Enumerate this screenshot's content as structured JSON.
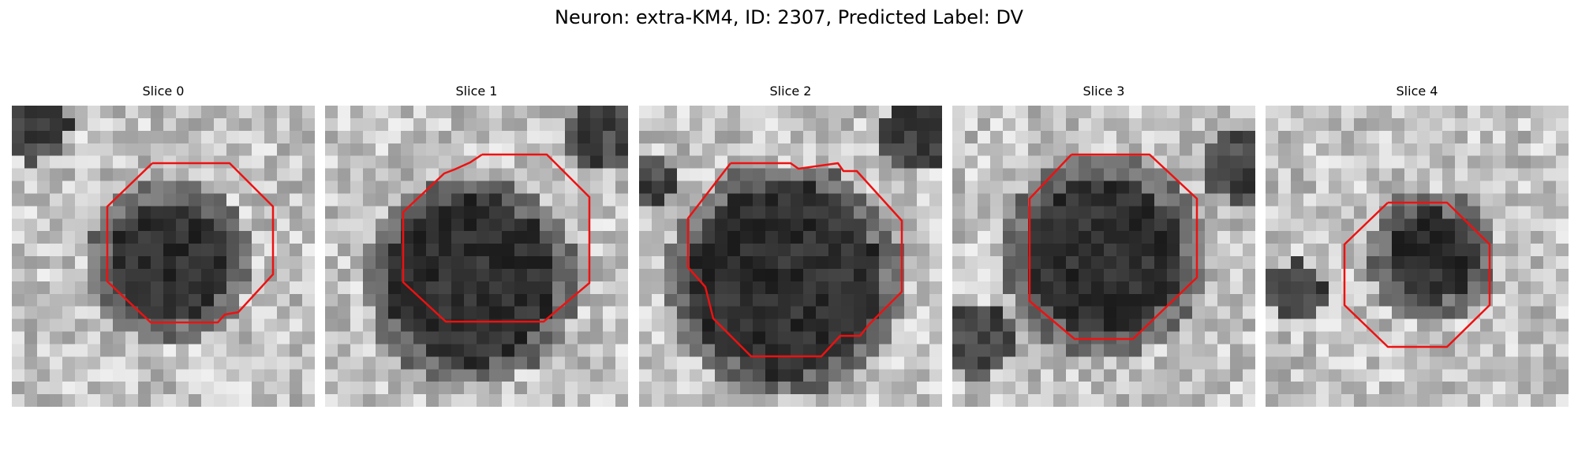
{
  "figure": {
    "title": "Neuron: extra-KM4, ID: 2307, Predicted Label: DV",
    "contour_color": "#ee1111",
    "colormap": "grayscale"
  },
  "slices": [
    {
      "title": "Slice 0"
    },
    {
      "title": "Slice 1"
    },
    {
      "title": "Slice 2"
    },
    {
      "title": "Slice 3"
    },
    {
      "title": "Slice 4"
    }
  ]
}
